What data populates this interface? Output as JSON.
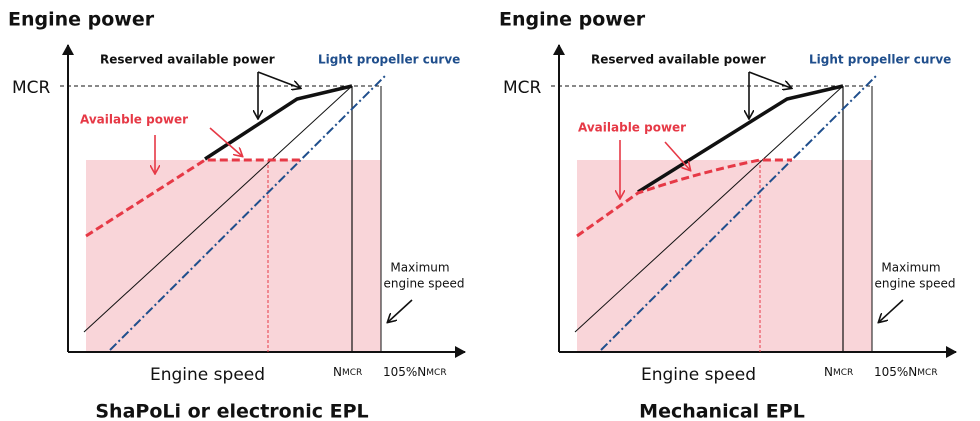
{
  "panels": [
    {
      "y_axis_label": "Engine power",
      "mcr_label": "MCR",
      "reserved_label": "Reserved available power",
      "propeller_label": "Light propeller curve",
      "available_label": "Available power",
      "max_speed_label": [
        "Maximum",
        "engine speed"
      ],
      "x_axis_label": "Engine speed",
      "nmcr_label": {
        "main": "N",
        "sub": "MCR"
      },
      "n105_label": {
        "main": "105%N",
        "sub": "MCR"
      },
      "caption": "ShaPoLi or electronic EPL"
    },
    {
      "y_axis_label": "Engine power",
      "mcr_label": "MCR",
      "reserved_label": "Reserved available power",
      "propeller_label": "Light propeller curve",
      "available_label": "Available power",
      "max_speed_label": [
        "Maximum",
        "engine speed"
      ],
      "x_axis_label": "Engine speed",
      "nmcr_label": {
        "main": "N",
        "sub": "MCR"
      },
      "n105_label": {
        "main": "105%N",
        "sub": "MCR"
      },
      "caption": "Mechanical EPL"
    }
  ]
}
